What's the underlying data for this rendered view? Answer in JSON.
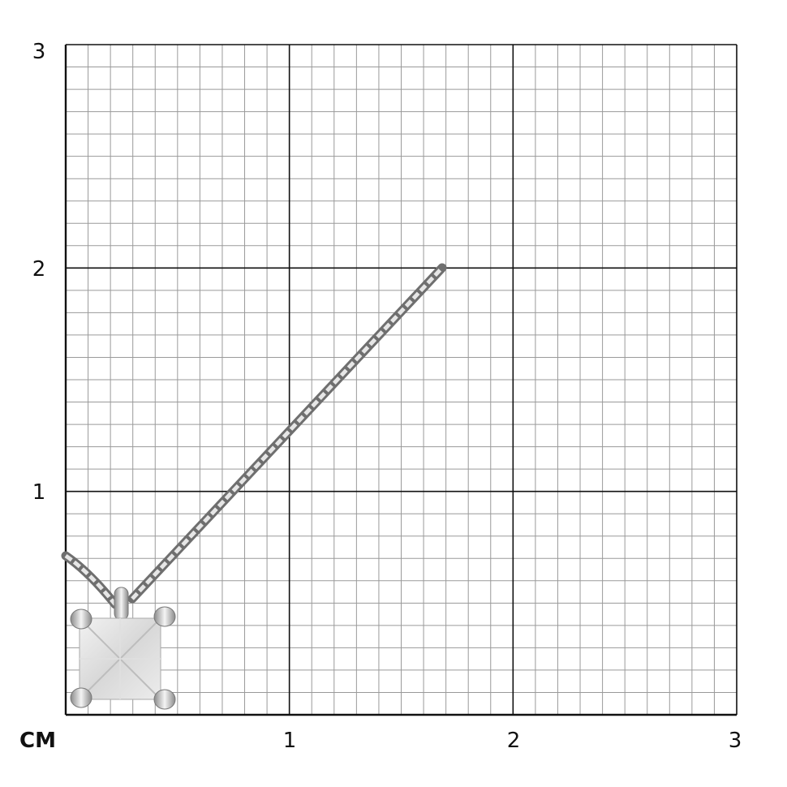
{
  "unit_label": "CM",
  "x_axis": {
    "ticks": [
      "1",
      "2",
      "3"
    ],
    "range": [
      0,
      3
    ],
    "minor_divisions_per_unit": 10
  },
  "y_axis": {
    "ticks": [
      "1",
      "2",
      "3"
    ],
    "range": [
      0,
      3
    ],
    "minor_divisions_per_unit": 10
  },
  "colors": {
    "major_grid": "#111111",
    "minor_grid": "#9a9a9a",
    "metal": "#a8a8a8",
    "background": "#ffffff"
  },
  "product": {
    "type": "princess-cut solitaire pendant on cable chain"
  }
}
